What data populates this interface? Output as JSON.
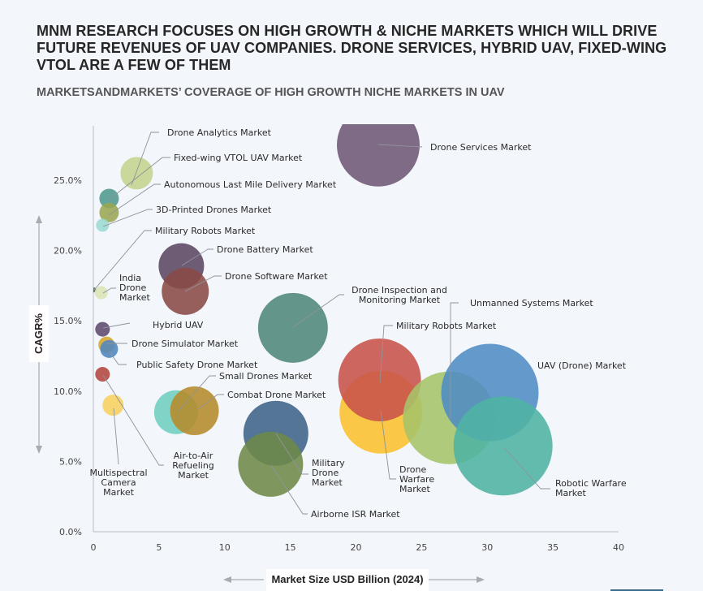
{
  "header": {
    "title": "MNM RESEARCH FOCUSES ON HIGH GROWTH & NICHE MARKETS WHICH WILL DRIVE FUTURE REVENUES OF UAV COMPANIES. DRONE SERVICES, HYBRID UAV, FIXED-WING VTOL ARE A FEW OF THEM",
    "subtitle": "MARKETSANDMARKETS’ COVERAGE OF HIGH GROWTH NICHE MARKETS IN UAV"
  },
  "chart_data": {
    "type": "scatter",
    "subtype": "bubble",
    "title": "MARKETSANDMARKETS’ COVERAGE OF HIGH GROWTH NICHE MARKETS IN UAV",
    "xlabel": "Market Size USD Billion (2024)",
    "ylabel": "CAGR%",
    "xlim": [
      0,
      40
    ],
    "ylim": [
      0,
      27.5
    ],
    "x_ticks": [
      "0",
      "5",
      "10",
      "15",
      "20",
      "25",
      "30",
      "35",
      "40"
    ],
    "y_ticks": [
      "0.0%",
      "5.0%",
      "10.0%",
      "15.0%",
      "20.0%",
      "25.0%"
    ],
    "grid": false,
    "legend": "none (direct labels)",
    "points": [
      {
        "name": "Drone Services Market",
        "x": 21.7,
        "y": 27.5,
        "size": 51,
        "color": "#6f5876",
        "label": [
          "Drone Services Market"
        ]
      },
      {
        "name": "Drone Analytics Market",
        "x": 3.3,
        "y": 25.5,
        "size": 20,
        "color": "#c4d48e",
        "label": [
          "Drone Analytics Market"
        ]
      },
      {
        "name": "Fixed-wing VTOL UAV Market",
        "x": 1.2,
        "y": 23.7,
        "size": 12,
        "color": "#4e9a8c",
        "label": [
          "Fixed-wing VTOL UAV Market"
        ]
      },
      {
        "name": "Autonomous Last Mile Delivery Market",
        "x": 1.2,
        "y": 22.7,
        "size": 12,
        "color": "#9aa752",
        "label": [
          "Autonomous Last Mile Delivery Market"
        ]
      },
      {
        "name": "3D-Printed Drones Market",
        "x": 0.7,
        "y": 21.8,
        "size": 8,
        "color": "#9bdcd2",
        "label": [
          "3D-Printed Drones Market"
        ]
      },
      {
        "name": "Military Robots Market (small)",
        "x": 0.05,
        "y": 17.2,
        "size": 3,
        "color": "#4a6e55",
        "label": [
          "Military Robots Market"
        ]
      },
      {
        "name": "India Drone Market",
        "x": 0.6,
        "y": 17.0,
        "size": 8,
        "color": "#d9e4b3",
        "label": [
          "India",
          "Drone",
          "Market"
        ]
      },
      {
        "name": "Drone Battery Market",
        "x": 6.7,
        "y": 18.9,
        "size": 28,
        "color": "#5b4762",
        "label": [
          "Drone Battery Market"
        ]
      },
      {
        "name": "Drone Software Market",
        "x": 7.0,
        "y": 17.1,
        "size": 29,
        "color": "#8a4a46",
        "label": [
          "Drone Software Market"
        ]
      },
      {
        "name": "Hybrid UAV",
        "x": 0.7,
        "y": 14.4,
        "size": 9,
        "color": "#5e4a6e",
        "label": [
          "Hybrid UAV"
        ]
      },
      {
        "name": "Drone Simulator Market",
        "x": 1.0,
        "y": 13.3,
        "size": 10,
        "color": "#d6a72b",
        "label": [
          "Drone Simulator Market"
        ]
      },
      {
        "name": "Public Safety Drone Market",
        "x": 1.2,
        "y": 13.0,
        "size": 11,
        "color": "#4f86c0",
        "label": [
          "Public Safety Drone Market"
        ]
      },
      {
        "name": "Air-to-Air Refueling Market",
        "x": 0.7,
        "y": 11.2,
        "size": 9,
        "color": "#b2453d",
        "label": [
          "Air-to-Air",
          "Refueling",
          "Market"
        ]
      },
      {
        "name": "Multispectral Camera Market",
        "x": 1.5,
        "y": 9.0,
        "size": 13,
        "color": "#f7d25e",
        "label": [
          "Multispectral",
          "Camera",
          "Market"
        ]
      },
      {
        "name": "Small Drones Market",
        "x": 6.3,
        "y": 8.5,
        "size": 27,
        "color": "#6fcfbf",
        "label": [
          "Small Drones Market"
        ]
      },
      {
        "name": "Combat Drone Market",
        "x": 7.7,
        "y": 8.6,
        "size": 30,
        "color": "#b58b2a",
        "label": [
          "Combat Drone Market"
        ]
      },
      {
        "name": "Drone Inspection and Monitoring Market",
        "x": 15.2,
        "y": 14.5,
        "size": 43,
        "color": "#4e877b",
        "label": [
          "Drone Inspection and",
          "Monitoring Market"
        ]
      },
      {
        "name": "Military Drone Market",
        "x": 13.9,
        "y": 7.0,
        "size": 40,
        "color": "#3d6388",
        "label": [
          "Military",
          "Drone",
          "Market"
        ]
      },
      {
        "name": "Airborne ISR Market",
        "x": 13.5,
        "y": 4.8,
        "size": 40,
        "color": "#6e8a48",
        "label": [
          "Airborne ISR Market"
        ]
      },
      {
        "name": "Drone Warfare Market",
        "x": 21.9,
        "y": 8.5,
        "size": 51,
        "color": "#fbc02d",
        "label": [
          "Drone",
          "Warfare",
          "Market"
        ]
      },
      {
        "name": "Military Robots Market",
        "x": 21.8,
        "y": 10.8,
        "size": 51,
        "color": "#c8524a",
        "label": [
          "Military Robots Market"
        ]
      },
      {
        "name": "Unmanned Systems Market",
        "x": 27.1,
        "y": 8.1,
        "size": 57,
        "color": "#a6c46a",
        "label": [
          "Unmanned Systems Market"
        ]
      },
      {
        "name": "UAV (Drone) Market",
        "x": 30.2,
        "y": 9.9,
        "size": 60,
        "color": "#4f8cc4",
        "label": [
          "UAV (Drone) Market"
        ]
      },
      {
        "name": "Robotic Warfare Market",
        "x": 31.2,
        "y": 6.1,
        "size": 61,
        "color": "#4fb3a3",
        "label": [
          "Robotic Warfare",
          "Market"
        ]
      }
    ]
  }
}
